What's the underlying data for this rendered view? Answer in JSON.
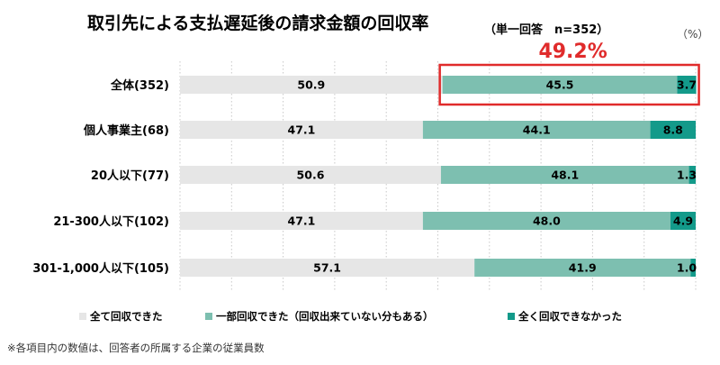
{
  "chart_data": {
    "type": "bar",
    "orientation": "horizontal",
    "stacked": true,
    "title": "取引先による支払遅延後の請求金額の回収率",
    "subtitle": "（単一回答　n=352）",
    "unit": "（%）",
    "xlim": [
      0,
      100
    ],
    "grid": true,
    "legend_position": "bottom",
    "categories": [
      "全体(352)",
      "個人事業主(68)",
      "20人以下(77)",
      "21-300人以下(102)",
      "301-1,000人以下(105)"
    ],
    "series": [
      {
        "name": "全て回収できた",
        "color": "#e6e6e6",
        "values": [
          50.9,
          47.1,
          50.6,
          47.1,
          57.1
        ]
      },
      {
        "name": "一部回収できた（回収出来ていない分もある）",
        "color": "#7dbfb0",
        "values": [
          45.5,
          44.1,
          48.1,
          48.0,
          41.9
        ]
      },
      {
        "name": "全く回収できなかった",
        "color": "#139a8a",
        "values": [
          3.7,
          8.8,
          1.3,
          4.9,
          1.0
        ]
      }
    ],
    "callout": {
      "text": "49.2%",
      "category_index": 0,
      "series_indices": [
        1,
        2
      ],
      "color": "#e02b2b"
    },
    "footnote": "※各項目内の数値は、回答者の所属する企業の従業員数"
  }
}
